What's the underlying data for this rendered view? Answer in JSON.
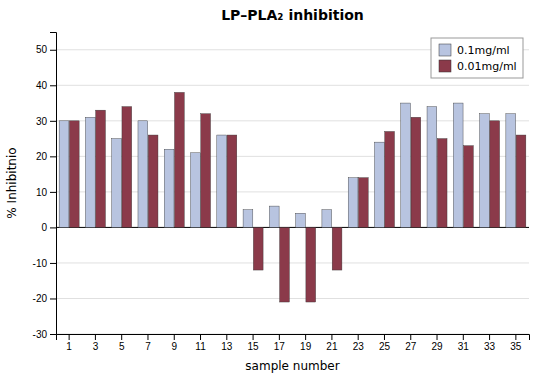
{
  "chart_data": {
    "type": "bar",
    "title": "LP–PLA₂ inhibition",
    "xlabel": "sample number",
    "ylabel": "% Inhibitnio",
    "categories": [
      "1",
      "3",
      "5",
      "7",
      "9",
      "11",
      "13",
      "15",
      "17",
      "19",
      "21",
      "23",
      "25",
      "27",
      "29",
      "31",
      "33",
      "35"
    ],
    "series": [
      {
        "name": "0.1mg/ml",
        "color": "#b8c4e0",
        "values": [
          30,
          31,
          25,
          30,
          22,
          21,
          26,
          5,
          6,
          4,
          5,
          14,
          24,
          35,
          34,
          35,
          32,
          32
        ]
      },
      {
        "name": "0.01mg/ml",
        "color": "#8b3a4a",
        "values": [
          30,
          33,
          34,
          26,
          38,
          32,
          26,
          -12,
          -21,
          -21,
          -12,
          14,
          27,
          31,
          25,
          23,
          30,
          26
        ]
      }
    ],
    "ylim": [
      -30,
      55
    ],
    "yticks": [
      -30,
      -20,
      -10,
      0,
      10,
      20,
      30,
      40,
      50
    ],
    "grid": true,
    "legend": "upper right"
  }
}
